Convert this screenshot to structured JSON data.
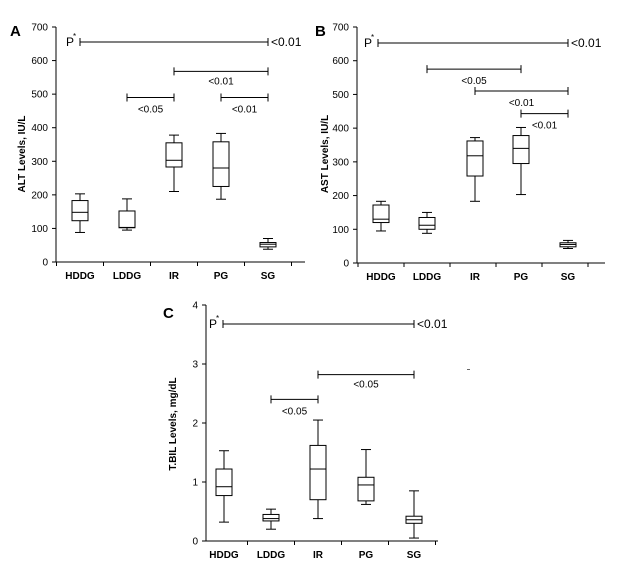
{
  "chart_data": [
    {
      "panel": "A",
      "type": "boxplot",
      "ylabel": "ALT Levels, IU/L",
      "ylim": [
        0,
        700
      ],
      "yticks": [
        0,
        100,
        200,
        300,
        400,
        500,
        600,
        700
      ],
      "categories": [
        "HDDG",
        "LDDG",
        "IR",
        "PG",
        "SG"
      ],
      "boxes": [
        {
          "name": "HDDG",
          "min": 88,
          "q1": 123,
          "median": 148,
          "q3": 183,
          "max": 203
        },
        {
          "name": "LDDG",
          "min": 95,
          "q1": 102,
          "median": 103,
          "q3": 152,
          "max": 188
        },
        {
          "name": "IR",
          "min": 210,
          "q1": 283,
          "median": 303,
          "q3": 355,
          "max": 378
        },
        {
          "name": "PG",
          "min": 187,
          "q1": 225,
          "median": 280,
          "q3": 358,
          "max": 383
        },
        {
          "name": "SG",
          "min": 38,
          "q1": 45,
          "median": 53,
          "q3": 58,
          "max": 70
        }
      ],
      "p_label": "P",
      "p_superscript": "*",
      "brackets": [
        {
          "from": "P",
          "to": "SG",
          "y": 670,
          "label": "<0.01",
          "position": "right"
        },
        {
          "from": "IR",
          "to": "SG",
          "y": 568,
          "label": "<0.01",
          "position": "above"
        },
        {
          "from": "LDDG",
          "to": "IR",
          "y": 490,
          "label": "<0.05",
          "position": "below"
        },
        {
          "from": "PG",
          "to": "SG",
          "y": 490,
          "label": "<0.01",
          "position": "below"
        }
      ]
    },
    {
      "panel": "B",
      "type": "boxplot",
      "ylabel": "AST Levels, IU/L",
      "ylim": [
        0,
        700
      ],
      "yticks": [
        0,
        100,
        200,
        300,
        400,
        500,
        600,
        700
      ],
      "categories": [
        "HDDG",
        "LDDG",
        "IR",
        "PG",
        "SG"
      ],
      "boxes": [
        {
          "name": "HDDG",
          "min": 95,
          "q1": 120,
          "median": 130,
          "q3": 172,
          "max": 183
        },
        {
          "name": "LDDG",
          "min": 88,
          "q1": 100,
          "median": 112,
          "q3": 135,
          "max": 150
        },
        {
          "name": "IR",
          "min": 183,
          "q1": 258,
          "median": 318,
          "q3": 362,
          "max": 372
        },
        {
          "name": "PG",
          "min": 203,
          "q1": 295,
          "median": 340,
          "q3": 378,
          "max": 402
        },
        {
          "name": "SG",
          "min": 43,
          "q1": 48,
          "median": 55,
          "q3": 60,
          "max": 67
        }
      ],
      "p_label": "P",
      "p_superscript": "*",
      "brackets": [
        {
          "from": "P",
          "to": "SG",
          "y": 670,
          "label": "<0.01",
          "position": "right"
        },
        {
          "from": "LDDG",
          "to": "PG",
          "y": 575,
          "label": "<0.05",
          "position": "below"
        },
        {
          "from": "IR",
          "to": "SG",
          "y": 510,
          "label": "<0.01",
          "position": "below"
        },
        {
          "from": "PG",
          "to": "SG",
          "y": 443,
          "label": "<0.01",
          "position": "below"
        }
      ]
    },
    {
      "panel": "C",
      "type": "boxplot",
      "ylabel": "T.BIL Levels, mg/dL",
      "ylim": [
        0,
        4
      ],
      "yticks": [
        0,
        1,
        2,
        3,
        4
      ],
      "categories": [
        "HDDG",
        "LDDG",
        "IR",
        "PG",
        "SG"
      ],
      "boxes": [
        {
          "name": "HDDG",
          "min": 0.32,
          "q1": 0.77,
          "median": 0.92,
          "q3": 1.22,
          "max": 1.53
        },
        {
          "name": "LDDG",
          "min": 0.2,
          "q1": 0.34,
          "median": 0.38,
          "q3": 0.45,
          "max": 0.54
        },
        {
          "name": "IR",
          "min": 0.38,
          "q1": 0.7,
          "median": 1.22,
          "q3": 1.62,
          "max": 2.05
        },
        {
          "name": "PG",
          "min": 0.62,
          "q1": 0.68,
          "median": 0.95,
          "q3": 1.08,
          "max": 1.55
        },
        {
          "name": "SG",
          "min": 0.05,
          "q1": 0.3,
          "median": 0.36,
          "q3": 0.42,
          "max": 0.85
        }
      ],
      "p_label": "P",
      "p_superscript": "*",
      "brackets": [
        {
          "from": "P",
          "to": "SG",
          "y": 3.75,
          "label": "<0.01",
          "position": "right"
        },
        {
          "from": "IR",
          "to": "SG",
          "y": 2.82,
          "label": "<0.05",
          "position": "above"
        },
        {
          "from": "LDDG",
          "to": "IR",
          "y": 2.4,
          "label": "<0.05",
          "position": "below"
        }
      ]
    }
  ]
}
